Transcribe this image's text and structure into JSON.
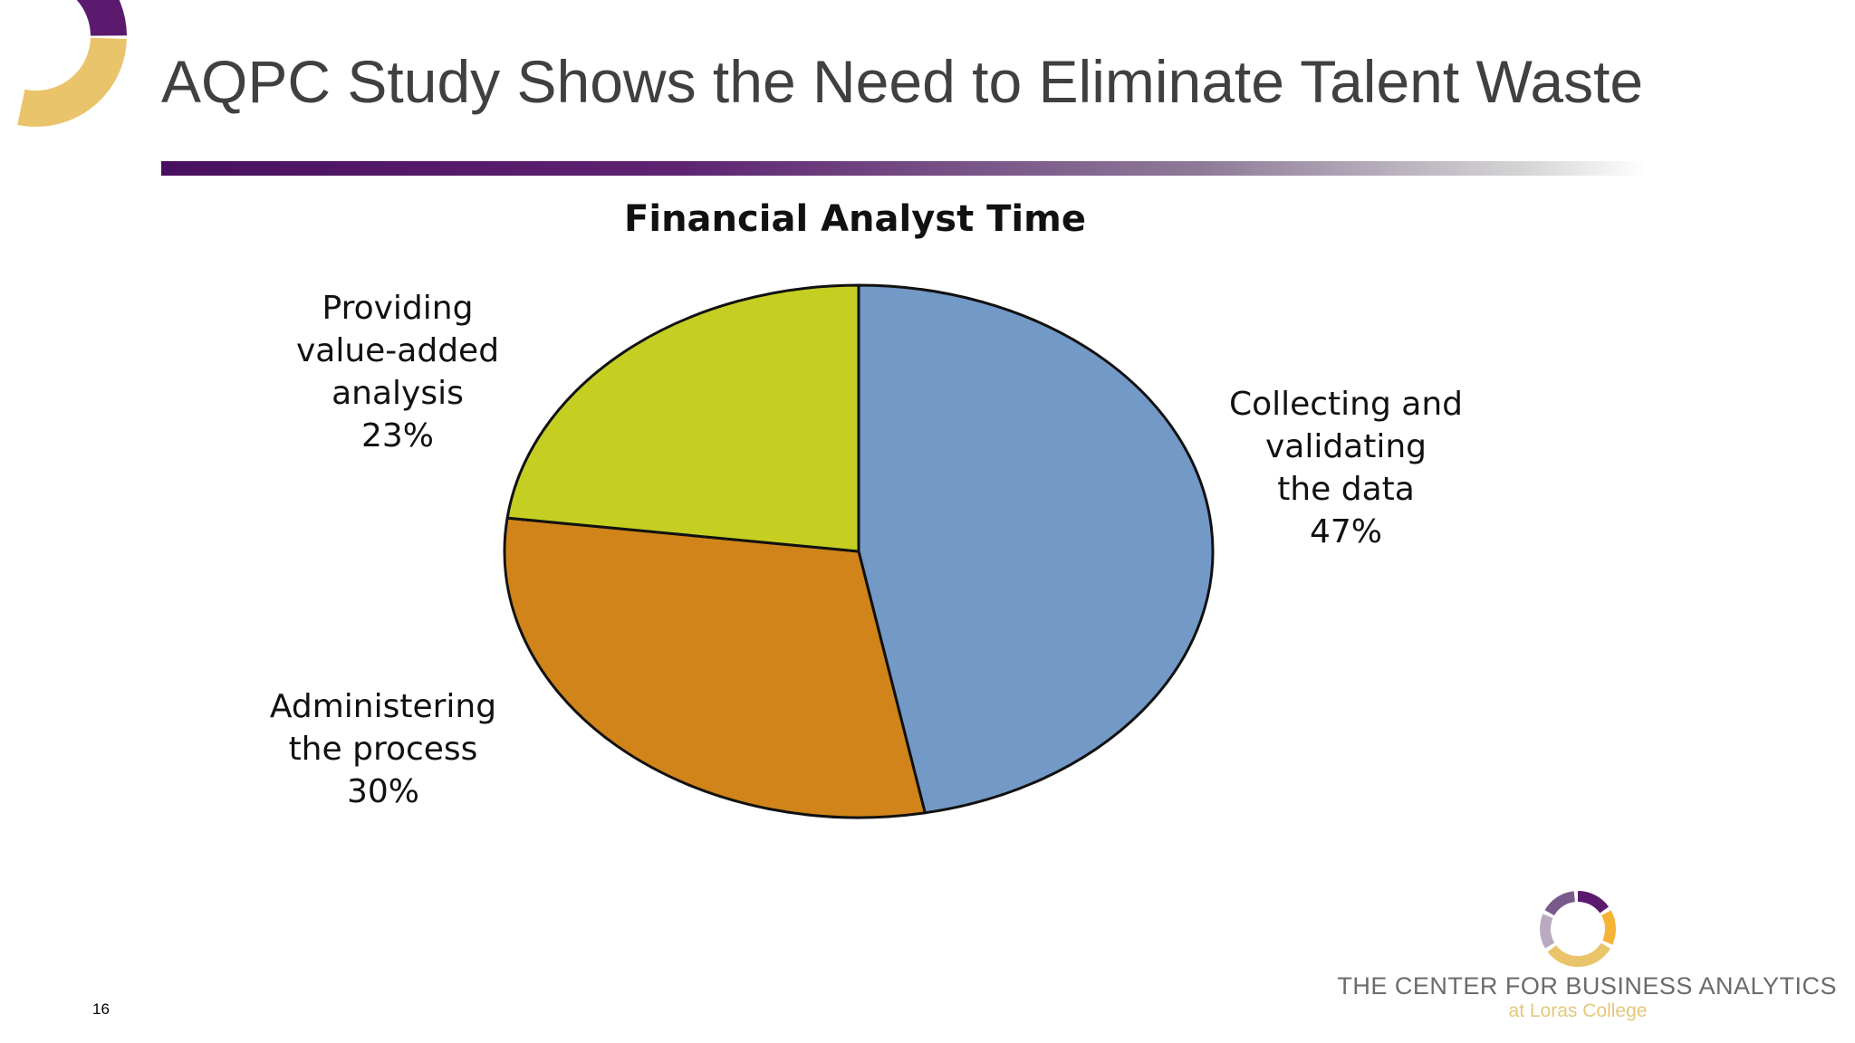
{
  "slide": {
    "title": "AQPC Study Shows the Need to Eliminate Talent Waste",
    "page_number": "16"
  },
  "logo": {
    "name": "THE CENTER FOR BUSINESS ANALYTICS",
    "sub": "at Loras College",
    "colors": [
      "#5b1a6e",
      "#7a5a8a",
      "#b9aac2",
      "#e9c46a",
      "#f5b335"
    ]
  },
  "chart_data": {
    "type": "pie",
    "title": "Financial Analyst Time",
    "start_angle_deg": 0,
    "direction": "clockwise",
    "slices": [
      {
        "label_lines": [
          "Collecting and",
          "validating",
          "the data",
          "47%"
        ],
        "label": "Collecting and validating the data",
        "value": 47,
        "color": "#7399c6"
      },
      {
        "label_lines": [
          "Administering",
          "the process",
          "30%"
        ],
        "label": "Administering the process",
        "value": 30,
        "color": "#d08419"
      },
      {
        "label_lines": [
          "Providing",
          "value-added",
          "analysis",
          "23%"
        ],
        "label": "Providing value-added analysis",
        "value": 23,
        "color": "#c4cf22"
      }
    ],
    "legend": "none"
  }
}
